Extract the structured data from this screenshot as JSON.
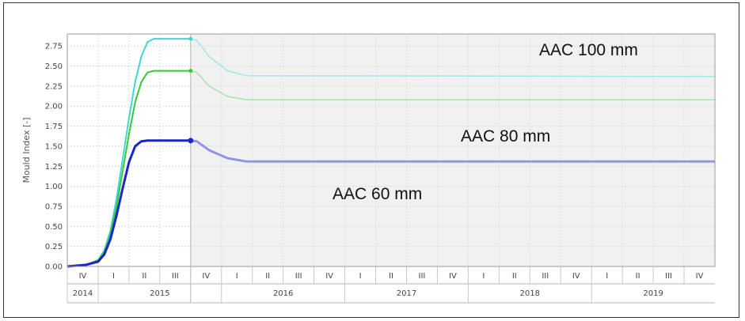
{
  "chart_data": {
    "type": "line",
    "title": "",
    "xlabel": "",
    "ylabel": "Mould Index [-]",
    "ylim": [
      0,
      2.9
    ],
    "yticks": [
      "0.00",
      "0.25",
      "0.50",
      "0.75",
      "1.00",
      "1.25",
      "1.50",
      "1.75",
      "2.00",
      "2.25",
      "2.50",
      "2.75"
    ],
    "grid": true,
    "quarters": [
      "IV",
      "I",
      "II",
      "III",
      "IV",
      "I",
      "II",
      "III",
      "IV",
      "I",
      "II",
      "III",
      "IV",
      "I",
      "II",
      "III",
      "IV",
      "I",
      "II",
      "III",
      "IV"
    ],
    "years": [
      "2014",
      "2015",
      "2016",
      "2017",
      "2018",
      "2019"
    ],
    "x_unit": "years since start of Q4 2014",
    "x_range": [
      0,
      5.25
    ],
    "simulated_until_x": 1.0,
    "series": [
      {
        "name": "AAC 100 mm",
        "color": "#3fd6d6",
        "color_after": "#9ee9ea",
        "points": [
          [
            0,
            0
          ],
          [
            0.15,
            0.02
          ],
          [
            0.25,
            0.08
          ],
          [
            0.3,
            0.2
          ],
          [
            0.35,
            0.45
          ],
          [
            0.4,
            0.85
          ],
          [
            0.45,
            1.35
          ],
          [
            0.5,
            1.85
          ],
          [
            0.55,
            2.3
          ],
          [
            0.6,
            2.62
          ],
          [
            0.65,
            2.8
          ],
          [
            0.7,
            2.84
          ],
          [
            1.0,
            2.84
          ],
          [
            1.05,
            2.82
          ],
          [
            1.15,
            2.62
          ],
          [
            1.3,
            2.44
          ],
          [
            1.45,
            2.38
          ],
          [
            5.25,
            2.37
          ]
        ]
      },
      {
        "name": "AAC 80 mm",
        "color": "#35c935",
        "color_after": "#a3e6a3",
        "points": [
          [
            0,
            0
          ],
          [
            0.15,
            0.02
          ],
          [
            0.25,
            0.08
          ],
          [
            0.3,
            0.18
          ],
          [
            0.35,
            0.4
          ],
          [
            0.4,
            0.75
          ],
          [
            0.45,
            1.2
          ],
          [
            0.5,
            1.65
          ],
          [
            0.55,
            2.05
          ],
          [
            0.6,
            2.3
          ],
          [
            0.65,
            2.42
          ],
          [
            0.7,
            2.44
          ],
          [
            1.0,
            2.44
          ],
          [
            1.05,
            2.42
          ],
          [
            1.15,
            2.25
          ],
          [
            1.3,
            2.12
          ],
          [
            1.45,
            2.08
          ],
          [
            5.25,
            2.08
          ]
        ]
      },
      {
        "name": "AAC 60 mm",
        "color": "#1c25cc",
        "color_after": "#8f96e6",
        "points": [
          [
            0,
            0
          ],
          [
            0.15,
            0.02
          ],
          [
            0.25,
            0.06
          ],
          [
            0.3,
            0.15
          ],
          [
            0.35,
            0.34
          ],
          [
            0.4,
            0.64
          ],
          [
            0.45,
            0.98
          ],
          [
            0.5,
            1.3
          ],
          [
            0.55,
            1.5
          ],
          [
            0.6,
            1.56
          ],
          [
            0.65,
            1.57
          ],
          [
            1.0,
            1.57
          ],
          [
            1.05,
            1.56
          ],
          [
            1.15,
            1.45
          ],
          [
            1.3,
            1.35
          ],
          [
            1.45,
            1.31
          ],
          [
            5.25,
            1.31
          ]
        ]
      }
    ],
    "annotations": [
      "AAC 100 mm",
      "AAC 80 mm",
      "AAC 60 mm"
    ]
  }
}
